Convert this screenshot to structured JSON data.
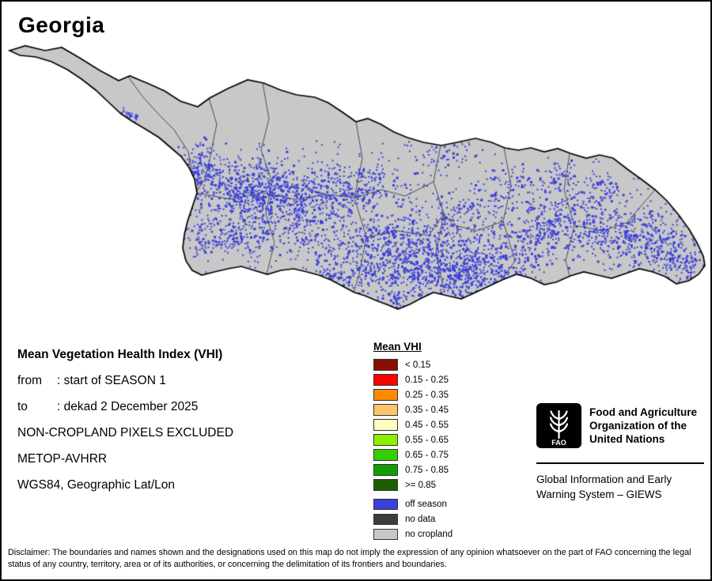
{
  "title": "Georgia",
  "map": {
    "land_color": "#c8c8c8",
    "border_color": "#000000",
    "admin_line_color": "#4d4d4d",
    "offseason_color": "#3b41d8"
  },
  "info": {
    "heading": "Mean Vegetation Health Index (VHI)",
    "from_label": "from",
    "from_value": ": start of SEASON 1",
    "to_label": "to",
    "to_value": ": dekad 2 December 2025",
    "line3": "NON-CROPLAND PIXELS EXCLUDED",
    "line4": "METOP-AVHRR",
    "line5": "WGS84, Geographic Lat/Lon"
  },
  "legend": {
    "title": "Mean VHI",
    "classes": [
      {
        "label": "< 0.15",
        "color": "#8b0f00"
      },
      {
        "label": "0.15 - 0.25",
        "color": "#fb0300"
      },
      {
        "label": "0.25 - 0.35",
        "color": "#ff8a00"
      },
      {
        "label": "0.35 - 0.45",
        "color": "#ffc46a"
      },
      {
        "label": "0.45 - 0.55",
        "color": "#fffdc0"
      },
      {
        "label": "0.55 - 0.65",
        "color": "#8af000"
      },
      {
        "label": "0.65 - 0.75",
        "color": "#35cf00"
      },
      {
        "label": "0.75 - 0.85",
        "color": "#129e00"
      },
      {
        "label": ">= 0.85",
        "color": "#1d5f00"
      }
    ],
    "extra": [
      {
        "label": "off season",
        "color": "#3b41d8"
      },
      {
        "label": "no data",
        "color": "#3c3c3c"
      },
      {
        "label": "no cropland",
        "color": "#c8c8c8"
      }
    ]
  },
  "fao": {
    "logo_mark": "FAO",
    "org_lines": [
      "Food and Agriculture",
      "Organization of the",
      "United Nations"
    ],
    "giews_lines": [
      "Global Information and Early",
      "Warning System – GIEWS"
    ]
  },
  "disclaimer": "Disclaimer: The boundaries and names shown and the designations used on this map do not imply the expression of any opinion whatsoever on the part of FAO concerning the legal status of any country, territory, area or of its authorities, or concerning the delimitation of its frontiers and boundaries."
}
